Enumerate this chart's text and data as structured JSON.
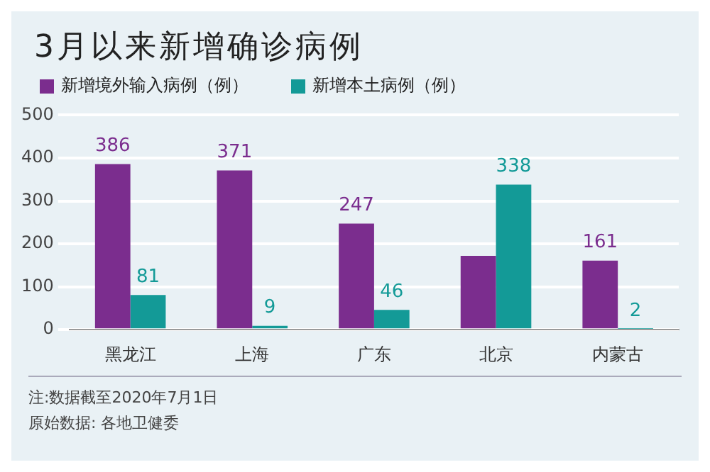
{
  "chart_data": {
    "type": "bar",
    "title": "3月以来新增确诊病例",
    "categories": [
      "黑龙江",
      "上海",
      "广东",
      "北京",
      "内蒙古"
    ],
    "series": [
      {
        "name": "新增境外输入病例（例）",
        "color": "#7b2d8e",
        "values": [
          386,
          371,
          247,
          172,
          161
        ],
        "value_labels": [
          "386",
          "371",
          "247",
          null,
          "161"
        ]
      },
      {
        "name": "新增本土病例（例）",
        "color": "#139a97",
        "values": [
          81,
          9,
          46,
          338,
          2
        ],
        "value_labels": [
          "81",
          "9",
          "46",
          "338",
          "2"
        ]
      }
    ],
    "ylim": [
      0,
      500
    ],
    "yticks": [
      0,
      100,
      200,
      300,
      400,
      500
    ],
    "grid": "y",
    "legend": "top left",
    "annotations": [
      "注:数据截至2020年7月1日",
      "原始数据: 各地卫健委"
    ]
  }
}
